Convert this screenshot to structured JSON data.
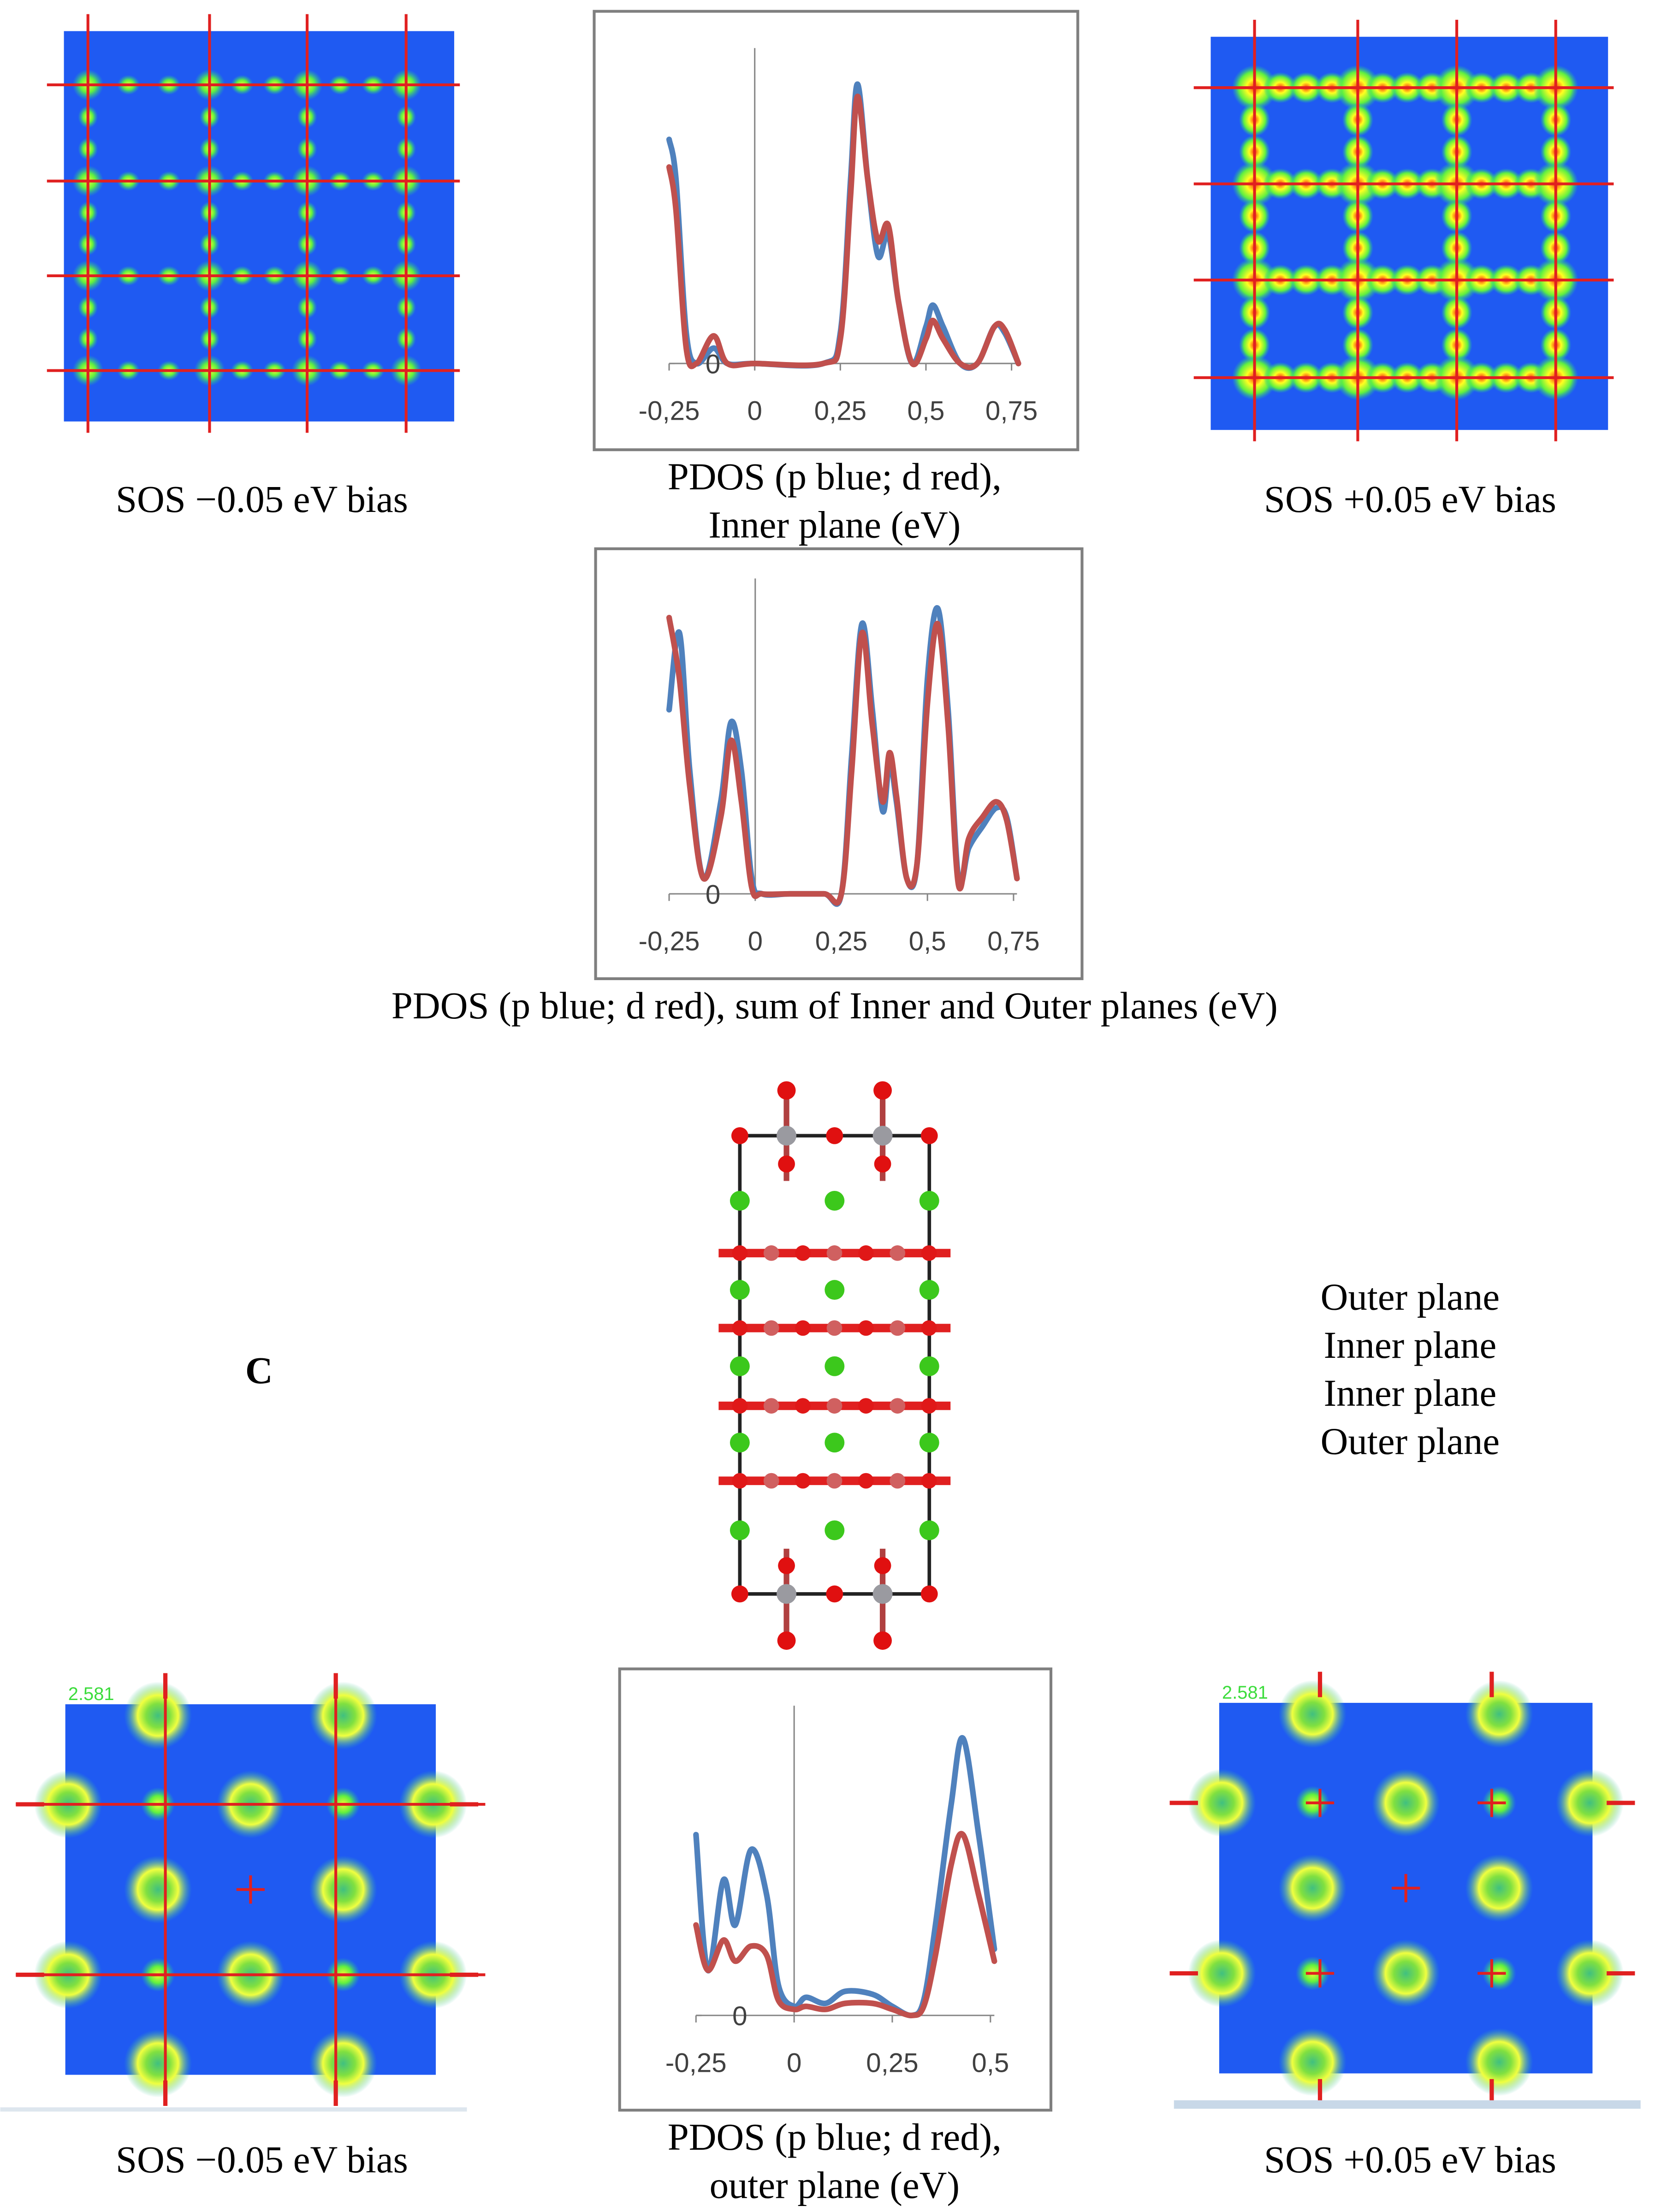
{
  "chart_data": [
    {
      "type": "line",
      "title": [
        "PDOS (p blue; d red),",
        "Inner plane (eV)"
      ],
      "x": [
        -0.25,
        -0.23,
        -0.2,
        -0.17,
        -0.12,
        -0.08,
        0,
        0.2,
        0.25,
        0.28,
        0.3,
        0.33,
        0.36,
        0.39,
        0.42,
        0.46,
        0.5,
        0.52,
        0.55,
        0.6,
        0.65,
        0.7,
        0.73,
        0.77
      ],
      "series": [
        {
          "color": "#4f81bd",
          "values": [
            0.73,
            0.6,
            0.1,
            0,
            0.05,
            0,
            0,
            0,
            0.1,
            0.6,
            0.91,
            0.6,
            0.35,
            0.42,
            0.2,
            0,
            0.12,
            0.19,
            0.12,
            0,
            0,
            0.12,
            0.1,
            0
          ]
        },
        {
          "color": "#c0504d",
          "values": [
            0.64,
            0.5,
            0.05,
            0,
            0.09,
            0,
            0,
            0,
            0.08,
            0.55,
            0.87,
            0.6,
            0.4,
            0.45,
            0.2,
            0,
            0.08,
            0.14,
            0.08,
            0,
            0,
            0.12,
            0.11,
            0
          ]
        }
      ],
      "xlim": [
        -0.25,
        0.77
      ],
      "ylim": [
        0,
        1
      ],
      "xticks": [
        {
          "value": -0.25,
          "label": "-0,25"
        },
        0,
        {
          "value": 0.25,
          "label": "0,25"
        },
        {
          "value": 0.5,
          "label": "0,5"
        },
        {
          "value": 0.75,
          "label": "0,75"
        }
      ],
      "yticks": [
        0
      ]
    },
    {
      "type": "line",
      "title": [
        "PDOS (p blue; d red), sum of Inner and Outer planes (eV)"
      ],
      "x": [
        -0.25,
        -0.22,
        -0.19,
        -0.15,
        -0.1,
        -0.07,
        -0.04,
        -0.01,
        0.02,
        0.1,
        0.2,
        0.25,
        0.28,
        0.31,
        0.34,
        0.37,
        0.39,
        0.41,
        0.44,
        0.47,
        0.5,
        0.53,
        0.56,
        0.59,
        0.62,
        0.66,
        0.7,
        0.73,
        0.76
      ],
      "series": [
        {
          "color": "#4f81bd",
          "values": [
            0.6,
            0.85,
            0.4,
            0.05,
            0.3,
            0.56,
            0.4,
            0.05,
            0,
            0,
            0,
            0,
            0.45,
            0.88,
            0.6,
            0.27,
            0.43,
            0.3,
            0.05,
            0.1,
            0.7,
            0.93,
            0.6,
            0.05,
            0.15,
            0.22,
            0.28,
            0.25,
            0.05
          ]
        },
        {
          "color": "#c0504d",
          "values": [
            0.9,
            0.7,
            0.35,
            0.05,
            0.25,
            0.5,
            0.3,
            0.02,
            0,
            0,
            0,
            0,
            0.4,
            0.85,
            0.55,
            0.3,
            0.46,
            0.32,
            0.05,
            0.1,
            0.62,
            0.88,
            0.55,
            0.03,
            0.18,
            0.25,
            0.3,
            0.24,
            0.05
          ]
        }
      ],
      "xlim": [
        -0.25,
        0.76
      ],
      "ylim": [
        0,
        1
      ],
      "xticks": [
        {
          "value": -0.25,
          "label": "-0,25"
        },
        0,
        {
          "value": 0.25,
          "label": "0,25"
        },
        {
          "value": 0.5,
          "label": "0,5"
        },
        {
          "value": 0.75,
          "label": "0,75"
        }
      ],
      "yticks": [
        0
      ]
    },
    {
      "type": "line",
      "title": [
        "PDOS (p blue; d red),",
        "outer plane (eV)"
      ],
      "x": [
        -0.25,
        -0.22,
        -0.18,
        -0.15,
        -0.11,
        -0.07,
        -0.04,
        0,
        0.03,
        0.08,
        0.13,
        0.2,
        0.25,
        0.3,
        0.33,
        0.36,
        0.4,
        0.43,
        0.47,
        0.51
      ],
      "series": [
        {
          "color": "#4f81bd",
          "values": [
            0.6,
            0.15,
            0.45,
            0.3,
            0.55,
            0.4,
            0.1,
            0.03,
            0.06,
            0.04,
            0.08,
            0.07,
            0.03,
            0,
            0.05,
            0.3,
            0.7,
            0.92,
            0.6,
            0.22
          ]
        },
        {
          "color": "#c0504d",
          "values": [
            0.3,
            0.15,
            0.25,
            0.18,
            0.23,
            0.2,
            0.05,
            0.02,
            0.03,
            0.02,
            0.04,
            0.04,
            0.02,
            0,
            0.03,
            0.2,
            0.5,
            0.6,
            0.4,
            0.18
          ]
        }
      ],
      "xlim": [
        -0.25,
        0.51
      ],
      "ylim": [
        0,
        1
      ],
      "xticks": [
        {
          "value": -0.25,
          "label": "-0,25"
        },
        0,
        {
          "value": 0.25,
          "label": "0,25"
        },
        {
          "value": 0.5,
          "label": "0,5"
        }
      ],
      "yticks": [
        0
      ]
    }
  ],
  "map_captions": [
    "SOS −0.05 eV bias",
    "SOS +0.05 eV bias",
    "SOS −0.05 eV bias",
    "SOS +0.05 eV bias"
  ],
  "map_labels": [
    "2.581",
    "2.581"
  ],
  "panel_label": "C",
  "plane_labels": [
    "Outer plane",
    "Inner plane",
    "Inner plane",
    "Outer plane"
  ]
}
